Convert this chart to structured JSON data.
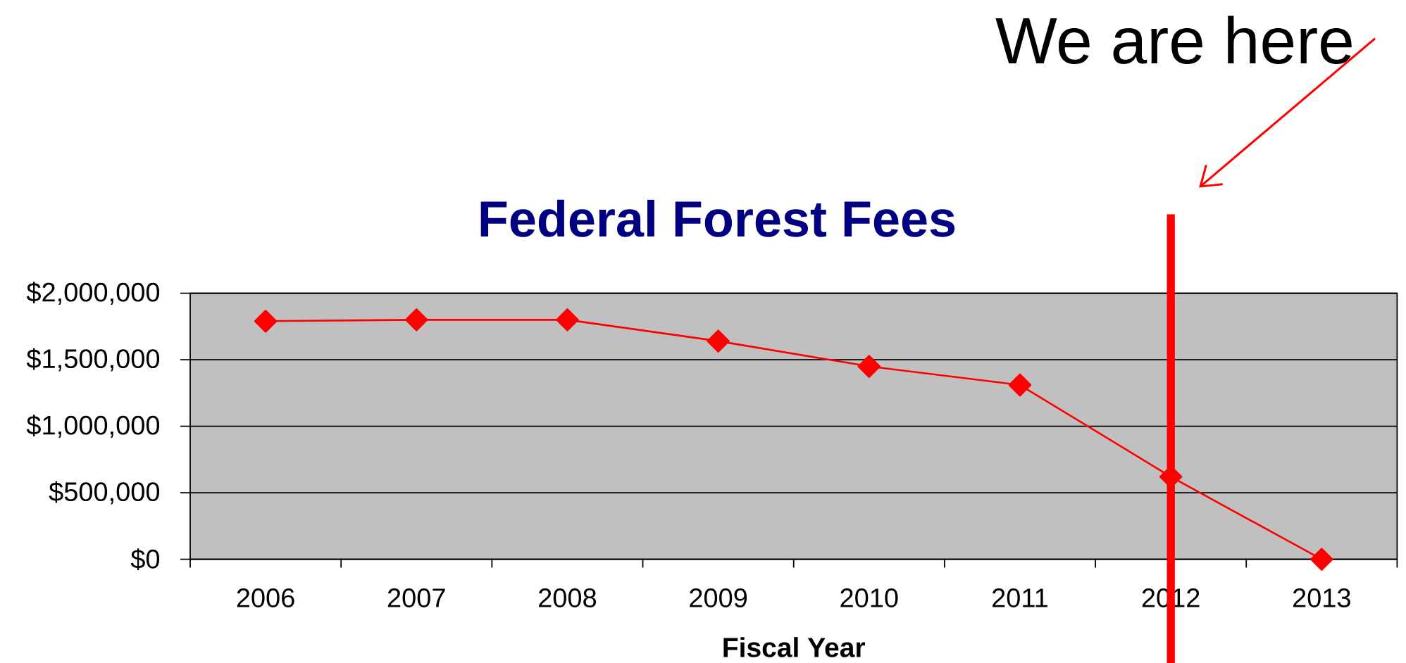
{
  "chart_data": {
    "type": "line",
    "title": "Federal Forest Fees",
    "xlabel": "Fiscal Year",
    "categories": [
      "2006",
      "2007",
      "2008",
      "2009",
      "2010",
      "2011",
      "2012",
      "2013"
    ],
    "series": [
      {
        "color": "#ff0000",
        "values": [
          1790000,
          1800000,
          1800000,
          1640000,
          1450000,
          1310000,
          620000,
          0
        ]
      }
    ],
    "ylim": [
      0,
      2000000
    ],
    "yticks": [
      {
        "value": 0,
        "label": "$0"
      },
      {
        "value": 500000,
        "label": "$500,000"
      },
      {
        "value": 1000000,
        "label": "$1,000,000"
      },
      {
        "value": 1500000,
        "label": "$1,500,000"
      },
      {
        "value": 2000000,
        "label": "$2,000,000"
      }
    ],
    "grid": "y",
    "marker": "diamond",
    "line_style": "solid",
    "ref_lines": [
      {
        "axis": "x",
        "value": "2012",
        "color": "#ff0000"
      }
    ],
    "annotations": [
      "We are here"
    ]
  }
}
